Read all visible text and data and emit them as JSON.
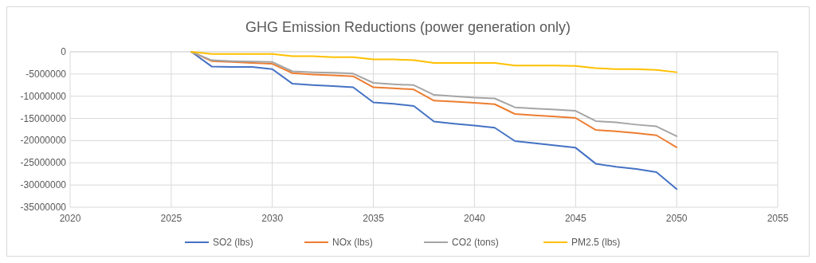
{
  "chart_data": {
    "type": "line",
    "title": "GHG Emission Reductions (power generation only)",
    "x": [
      2026,
      2027,
      2028,
      2029,
      2030,
      2031,
      2032,
      2033,
      2034,
      2035,
      2036,
      2037,
      2038,
      2039,
      2040,
      2041,
      2042,
      2043,
      2044,
      2045,
      2046,
      2047,
      2048,
      2049,
      2050
    ],
    "series": [
      {
        "name": "SO2 (lbs)",
        "color": "#4472c4",
        "values": [
          0,
          -3300000,
          -3400000,
          -3400000,
          -3900000,
          -7200000,
          -7500000,
          -7700000,
          -8000000,
          -11400000,
          -11700000,
          -12200000,
          -15700000,
          -16200000,
          -16600000,
          -17100000,
          -20100000,
          -20600000,
          -21100000,
          -21600000,
          -25200000,
          -25900000,
          -26400000,
          -27100000,
          -30900000
        ]
      },
      {
        "name": "NOx (lbs)",
        "color": "#ed7d31",
        "values": [
          0,
          -2100000,
          -2300000,
          -2500000,
          -2700000,
          -4800000,
          -5100000,
          -5300000,
          -5500000,
          -8000000,
          -8200000,
          -8500000,
          -11000000,
          -11200000,
          -11500000,
          -11800000,
          -14000000,
          -14300000,
          -14600000,
          -14900000,
          -17600000,
          -17900000,
          -18300000,
          -18800000,
          -21500000
        ]
      },
      {
        "name": "CO2 (tons)",
        "color": "#a5a5a5",
        "values": [
          0,
          -1900000,
          -2100000,
          -2200000,
          -2300000,
          -4400000,
          -4600000,
          -4700000,
          -4900000,
          -7000000,
          -7300000,
          -7500000,
          -9700000,
          -10000000,
          -10300000,
          -10500000,
          -12500000,
          -12800000,
          -13000000,
          -13300000,
          -15600000,
          -15900000,
          -16400000,
          -16800000,
          -19000000
        ]
      },
      {
        "name": "PM2.5 (lbs)",
        "color": "#ffc000",
        "values": [
          0,
          -500000,
          -500000,
          -500000,
          -500000,
          -1000000,
          -1000000,
          -1200000,
          -1200000,
          -1700000,
          -1700000,
          -1900000,
          -2500000,
          -2500000,
          -2500000,
          -2500000,
          -3100000,
          -3100000,
          -3100000,
          -3200000,
          -3700000,
          -3900000,
          -3900000,
          -4100000,
          -4600000
        ]
      }
    ],
    "xlim": [
      2020,
      2055
    ],
    "xticks": [
      2020,
      2025,
      2030,
      2035,
      2040,
      2045,
      2050,
      2055
    ],
    "ylim": [
      -35000000,
      0
    ],
    "yticks": [
      0,
      -5000000,
      -10000000,
      -15000000,
      -20000000,
      -25000000,
      -30000000,
      -35000000
    ],
    "grid": true,
    "legend": "bottom",
    "marker": "none",
    "line_style": "solid"
  }
}
